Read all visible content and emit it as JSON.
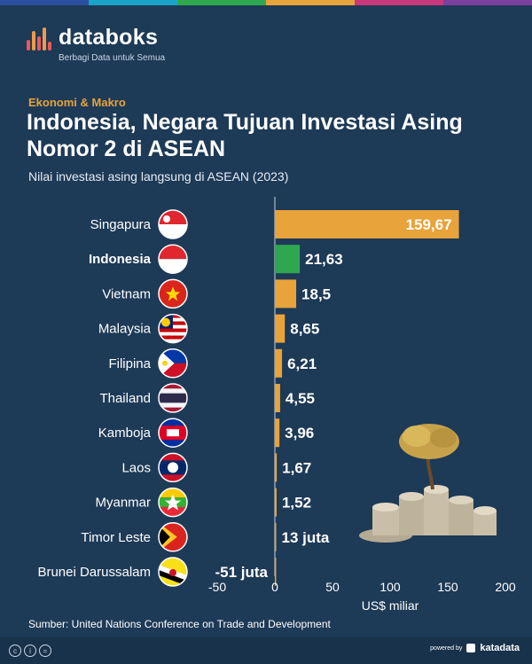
{
  "brand": {
    "name": "databoks",
    "tagline": "Berbagi Data untuk Semua"
  },
  "header": {
    "category": "Ekonomi & Makro",
    "title": "Indonesia, Negara Tujuan Investasi Asing Nomor 2 di ASEAN",
    "subtitle": "Nilai investasi asing langsung di ASEAN (2023)"
  },
  "colors": {
    "bar": "#e8a33a",
    "highlight": "#2ea84e",
    "background": "#1d3a57"
  },
  "chart_data": {
    "type": "bar",
    "orientation": "horizontal",
    "categories": [
      "Singapura",
      "Indonesia",
      "Vietnam",
      "Malaysia",
      "Filipina",
      "Thailand",
      "Kamboja",
      "Laos",
      "Myanmar",
      "Timor Leste",
      "Brunei Darussalam"
    ],
    "values": [
      159.67,
      21.63,
      18.5,
      8.65,
      6.21,
      4.55,
      3.96,
      1.67,
      1.52,
      0.013,
      -0.051
    ],
    "value_labels": [
      "159,67",
      "21,63",
      "18,5",
      "8,65",
      "6,21",
      "4,55",
      "3,96",
      "1,67",
      "1,52",
      "13 juta",
      "-51 juta"
    ],
    "highlight": "Indonesia",
    "xlabel": "US$ miliar",
    "xlim": [
      -50,
      200
    ],
    "xticks": [
      -50,
      0,
      50,
      100,
      150,
      200
    ],
    "flag_icons": [
      "flag-singapore-icon",
      "flag-indonesia-icon",
      "flag-vietnam-icon",
      "flag-malaysia-icon",
      "flag-philippines-icon",
      "flag-thailand-icon",
      "flag-cambodia-icon",
      "flag-laos-icon",
      "flag-myanmar-icon",
      "flag-timor-leste-icon",
      "flag-brunei-icon"
    ]
  },
  "source": "Sumber: United Nations Conference on Trade and Development",
  "footer": {
    "powered_by": "powered by",
    "partner": "katadata"
  }
}
